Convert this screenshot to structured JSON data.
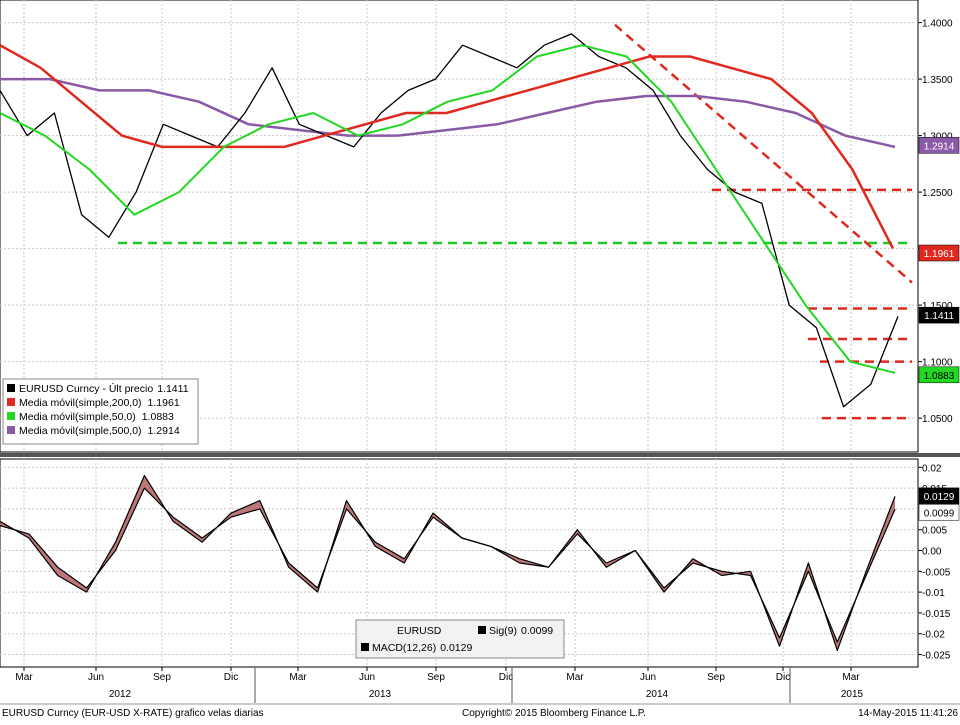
{
  "chart_data": [
    {
      "type": "line",
      "title": "",
      "x_axis": {
        "months": [
          {
            "label": "Mar",
            "idx": 0
          },
          {
            "label": "Jun",
            "idx": 1
          },
          {
            "label": "Sep",
            "idx": 2
          },
          {
            "label": "Dic",
            "idx": 3
          },
          {
            "label": "Mar",
            "idx": 4
          },
          {
            "label": "Jun",
            "idx": 5
          },
          {
            "label": "Sep",
            "idx": 6
          },
          {
            "label": "Dic",
            "idx": 7
          },
          {
            "label": "Mar",
            "idx": 8
          },
          {
            "label": "Jun",
            "idx": 9
          },
          {
            "label": "Sep",
            "idx": 10
          },
          {
            "label": "Dic",
            "idx": 11
          },
          {
            "label": "Mar",
            "idx": 12
          }
        ],
        "years": [
          "2012",
          "2013",
          "2014",
          "2015"
        ]
      },
      "y_axis": {
        "ticks": [
          "1.4000",
          "1.3500",
          "1.3000",
          "1.2500",
          "1.2000",
          "1.1500",
          "1.1000",
          "1.0500"
        ],
        "ylim": [
          1.02,
          1.42
        ]
      },
      "series": [
        {
          "name": "EURUSD Curncy",
          "color": "#000000",
          "values": [
            1.34,
            1.3,
            1.32,
            1.23,
            1.21,
            1.25,
            1.31,
            1.3,
            1.29,
            1.32,
            1.36,
            1.31,
            1.3,
            1.29,
            1.32,
            1.34,
            1.35,
            1.38,
            1.37,
            1.36,
            1.38,
            1.39,
            1.37,
            1.36,
            1.34,
            1.3,
            1.27,
            1.25,
            1.24,
            1.15,
            1.13,
            1.06,
            1.08,
            1.14
          ]
        },
        {
          "name": "Media móvil(simple,200,0)",
          "color": "#e0281e",
          "values": [
            1.38,
            1.36,
            1.33,
            1.3,
            1.29,
            1.29,
            1.29,
            1.29,
            1.3,
            1.31,
            1.32,
            1.32,
            1.33,
            1.34,
            1.35,
            1.36,
            1.37,
            1.37,
            1.36,
            1.35,
            1.32,
            1.27,
            1.2
          ]
        },
        {
          "name": "Media móvil(simple,50,0)",
          "color": "#22d822",
          "values": [
            1.32,
            1.3,
            1.27,
            1.23,
            1.25,
            1.29,
            1.31,
            1.32,
            1.3,
            1.31,
            1.33,
            1.34,
            1.37,
            1.38,
            1.37,
            1.33,
            1.27,
            1.21,
            1.15,
            1.1,
            1.09
          ]
        },
        {
          "name": "Media móvil(simple,500,0)",
          "color": "#8a5aa8",
          "values": [
            1.35,
            1.35,
            1.34,
            1.34,
            1.33,
            1.31,
            1.305,
            1.3,
            1.3,
            1.305,
            1.31,
            1.32,
            1.33,
            1.335,
            1.335,
            1.33,
            1.32,
            1.3,
            1.29
          ]
        }
      ],
      "price_badges": [
        {
          "label": "1.2914",
          "value": 1.2914,
          "bg": "#8a5aa8",
          "fg": "#ffffff"
        },
        {
          "label": "1.1961",
          "value": 1.1961,
          "bg": "#e0281e",
          "fg": "#ffffff"
        },
        {
          "label": "1.1411",
          "value": 1.1411,
          "bg": "#000000",
          "fg": "#ffffff"
        },
        {
          "label": "1.0883",
          "value": 1.0883,
          "bg": "#22d822",
          "fg": "#000000"
        }
      ],
      "annotation_lines": [
        {
          "kind": "support",
          "color": "#22c822",
          "value": 1.205
        },
        {
          "kind": "resistance",
          "color": "#e0281e",
          "value": 1.252
        },
        {
          "kind": "resistance",
          "color": "#e0281e",
          "value": 1.147
        },
        {
          "kind": "resistance",
          "color": "#e0281e",
          "value": 1.12
        },
        {
          "kind": "resistance",
          "color": "#e0281e",
          "value": 1.1
        },
        {
          "kind": "resistance",
          "color": "#e0281e",
          "value": 1.05
        },
        {
          "kind": "trend",
          "color": "#e0281e",
          "from": 1.398,
          "to": 1.17
        }
      ],
      "legend": {
        "placement": "bottom-left",
        "items": [
          {
            "label": "EURUSD Curncy - Últ precio",
            "value": "1.1411",
            "color": "#000000"
          },
          {
            "label": "Media móvil(simple,200,0)",
            "value": "1.1961",
            "color": "#e0281e"
          },
          {
            "label": "Media móvil(simple,50,0)",
            "value": "1.0883",
            "color": "#22d822"
          },
          {
            "label": "Media móvil(simple,500,0)",
            "value": "1.2914",
            "color": "#8a5aa8"
          }
        ]
      }
    },
    {
      "type": "line",
      "title": "",
      "y_axis": {
        "ticks": [
          "0.02",
          "0.015",
          "0.01",
          "0.005",
          "0.00",
          "-0.005",
          "-0.01",
          "-0.015",
          "-0.02",
          "-0.025"
        ],
        "ylim": [
          -0.028,
          0.022
        ]
      },
      "series": [
        {
          "name": "MACD(12,26)",
          "color": "#000000",
          "values": [
            0.007,
            0.003,
            -0.006,
            -0.01,
            0.002,
            0.018,
            0.007,
            0.002,
            0.009,
            0.012,
            -0.004,
            -0.01,
            0.012,
            0.001,
            -0.003,
            0.009,
            0.003,
            0.001,
            -0.003,
            -0.004,
            0.005,
            -0.004,
            0.0,
            -0.01,
            -0.002,
            -0.006,
            -0.005,
            -0.023,
            -0.003,
            -0.024,
            -0.005,
            0.013
          ]
        },
        {
          "name": "Sig(9)",
          "color": "#000000",
          "values": [
            0.006,
            0.004,
            -0.004,
            -0.009,
            0.0,
            0.015,
            0.008,
            0.003,
            0.008,
            0.01,
            -0.003,
            -0.009,
            0.01,
            0.002,
            -0.002,
            0.008,
            0.003,
            0.001,
            -0.002,
            -0.004,
            0.004,
            -0.003,
            0.0,
            -0.009,
            -0.003,
            -0.005,
            -0.006,
            -0.021,
            -0.005,
            -0.022,
            -0.006,
            0.0099
          ]
        }
      ],
      "price_badges": [
        {
          "label": "0.0129",
          "value": 0.0129,
          "bg": "#000000",
          "fg": "#ffffff"
        },
        {
          "label": "0.0099",
          "value": 0.0099,
          "bg": "#ffffff",
          "fg": "#000000"
        }
      ],
      "legend": {
        "title": "EURUSD",
        "items": [
          {
            "label": "Sig(9)",
            "value": "0.0099"
          },
          {
            "label": "MACD(12,26)",
            "value": "0.0129"
          }
        ]
      }
    }
  ],
  "footer": {
    "left": "EURUSD Curncy (EUR-USD X-RATE) grafico velas diarias",
    "center": "Copyright© 2015 Bloomberg Finance L.P.",
    "right": "14-May-2015 11:41:26"
  },
  "colors": {
    "background": "#ffffff",
    "grid": "#c8c8c8",
    "macd_fill": "#b06060"
  }
}
